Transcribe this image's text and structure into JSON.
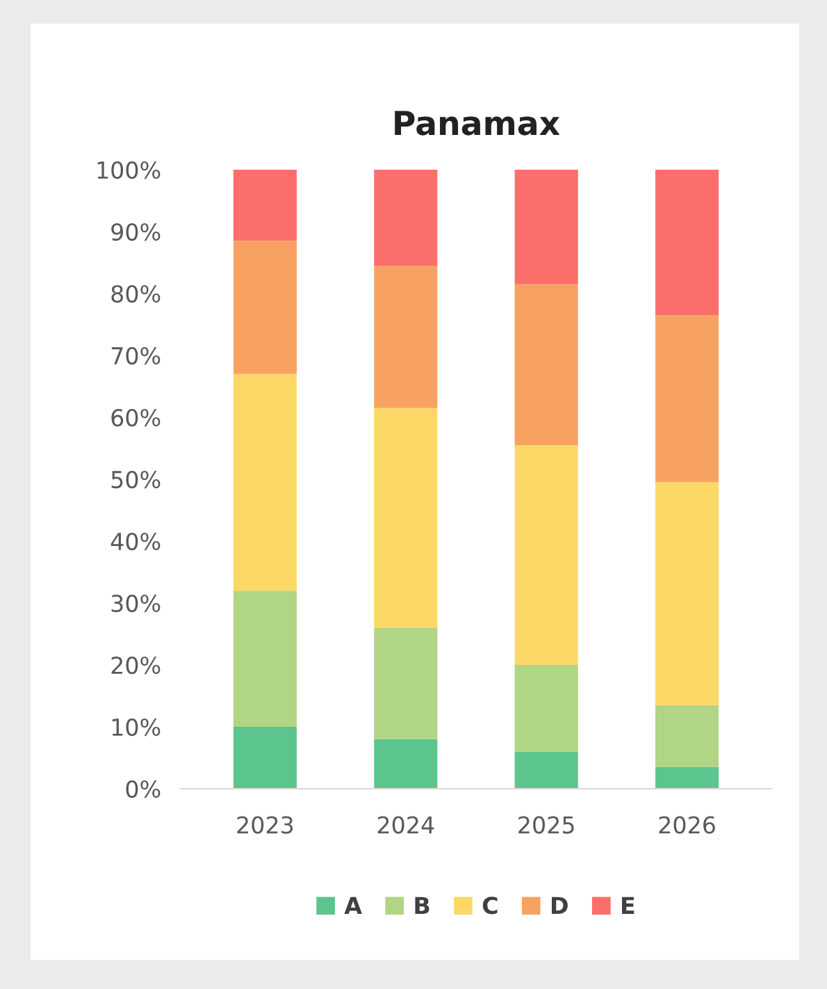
{
  "chart_data": {
    "type": "bar",
    "title": "Panamax",
    "stacked": true,
    "categories": [
      "2023",
      "2024",
      "2025",
      "2026"
    ],
    "series": [
      {
        "name": "A",
        "color": "#5cc58d",
        "values": [
          10,
          8,
          6,
          3.5
        ]
      },
      {
        "name": "B",
        "color": "#b0d584",
        "values": [
          22,
          18,
          14,
          10
        ]
      },
      {
        "name": "C",
        "color": "#fcd966",
        "values": [
          35,
          35.5,
          35.5,
          36
        ]
      },
      {
        "name": "D",
        "color": "#f7a263",
        "values": [
          21.5,
          23,
          26,
          27
        ]
      },
      {
        "name": "E",
        "color": "#fb6e6c",
        "values": [
          11.5,
          15.5,
          18.5,
          23.5
        ]
      }
    ],
    "ylim": [
      0,
      100
    ],
    "yticks": [
      {
        "value": 0,
        "label": "0%"
      },
      {
        "value": 10,
        "label": "10%"
      },
      {
        "value": 20,
        "label": "20%"
      },
      {
        "value": 30,
        "label": "30%"
      },
      {
        "value": 40,
        "label": "40%"
      },
      {
        "value": 50,
        "label": "50%"
      },
      {
        "value": 60,
        "label": "60%"
      },
      {
        "value": 70,
        "label": "70%"
      },
      {
        "value": 80,
        "label": "80%"
      },
      {
        "value": 90,
        "label": "90%"
      },
      {
        "value": 100,
        "label": "100%"
      }
    ],
    "grid": false,
    "legend": "bottom"
  }
}
